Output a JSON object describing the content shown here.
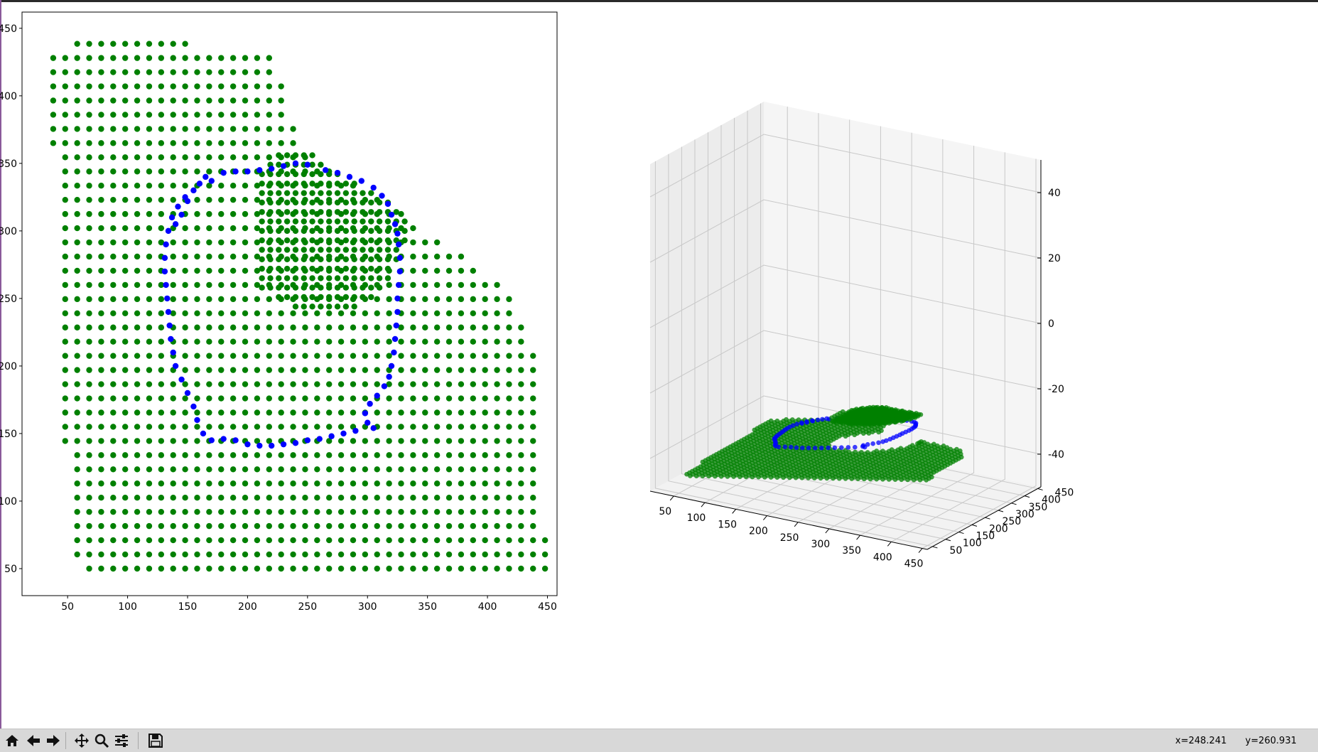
{
  "toolbar": {
    "buttons": [
      {
        "name": "home-button",
        "icon": "home-icon"
      },
      {
        "name": "back-button",
        "icon": "arrow-left-icon"
      },
      {
        "name": "forward-button",
        "icon": "arrow-right-icon"
      },
      {
        "name": "pan-button",
        "icon": "move-arrows-icon"
      },
      {
        "name": "zoom-button",
        "icon": "magnifier-icon"
      },
      {
        "name": "configure-subplots-button",
        "icon": "sliders-icon"
      },
      {
        "name": "save-button",
        "icon": "floppy-disk-icon"
      }
    ],
    "coords": {
      "x": "x=248.241",
      "y": "y=260.931"
    }
  },
  "chart_data": [
    {
      "type": "scatter",
      "title": "",
      "xlabel": "",
      "ylabel": "",
      "xlim": [
        12,
        458
      ],
      "ylim": [
        30,
        462
      ],
      "x_ticks": [
        "50",
        "100",
        "150",
        "200",
        "250",
        "300",
        "350",
        "400",
        "450"
      ],
      "y_ticks": [
        "50",
        "100",
        "150",
        "200",
        "250",
        "300",
        "350",
        "400",
        "450"
      ],
      "series": [
        {
          "color": "#008000",
          "description_points": "grid of points covering region bounded by (35,435),(75,443),(100,440),(215,437),(230,405),(240,375),(260,350),(320,320),(420,255),(440,205),(450,50),(60,50),(50,60),(45,260),(40,340),(35,380)"
        },
        {
          "color": "#0000ff",
          "points": [
            [
              180,
              343
            ],
            [
              190,
              344
            ],
            [
              200,
              344
            ],
            [
              210,
              345
            ],
            [
              220,
              346
            ],
            [
              230,
              348
            ],
            [
              240,
              350
            ],
            [
              250,
              349
            ],
            [
              265,
              345
            ],
            [
              275,
              343
            ],
            [
              285,
              340
            ],
            [
              295,
              337
            ],
            [
              305,
              332
            ],
            [
              312,
              326
            ],
            [
              317,
              320
            ],
            [
              320,
              312
            ],
            [
              323,
              305
            ],
            [
              325,
              298
            ],
            [
              326,
              290
            ],
            [
              327,
              280
            ],
            [
              327,
              270
            ],
            [
              326,
              260
            ],
            [
              325,
              250
            ],
            [
              325,
              240
            ],
            [
              324,
              230
            ],
            [
              323,
              220
            ],
            [
              322,
              210
            ],
            [
              320,
              200
            ],
            [
              318,
              192
            ],
            [
              314,
              185
            ],
            [
              308,
              178
            ],
            [
              302,
              172
            ],
            [
              298,
              165
            ],
            [
              300,
              158
            ],
            [
              305,
              154
            ],
            [
              290,
              152
            ],
            [
              280,
              150
            ],
            [
              270,
              148
            ],
            [
              260,
              146
            ],
            [
              250,
              145
            ],
            [
              240,
              143
            ],
            [
              230,
              142
            ],
            [
              220,
              141
            ],
            [
              210,
              141
            ],
            [
              200,
              142
            ],
            [
              190,
              145
            ],
            [
              180,
              146
            ],
            [
              170,
              145
            ],
            [
              163,
              150
            ],
            [
              158,
              160
            ],
            [
              155,
              170
            ],
            [
              150,
              180
            ],
            [
              145,
              190
            ],
            [
              140,
              200
            ],
            [
              138,
              210
            ],
            [
              136,
              220
            ],
            [
              135,
              230
            ],
            [
              134,
              240
            ],
            [
              133,
              250
            ],
            [
              132,
              260
            ],
            [
              131,
              270
            ],
            [
              131,
              280
            ],
            [
              132,
              290
            ],
            [
              134,
              300
            ],
            [
              137,
              310
            ],
            [
              142,
              318
            ],
            [
              148,
              325
            ],
            [
              155,
              330
            ],
            [
              160,
              335
            ],
            [
              170,
              337
            ],
            [
              165,
              340
            ],
            [
              150,
              322
            ],
            [
              145,
              312
            ],
            [
              140,
              305
            ]
          ]
        }
      ]
    },
    {
      "type": "scatter",
      "projection": "3d",
      "title": "",
      "x_ticks": [
        "50",
        "100",
        "150",
        "200",
        "250",
        "300",
        "350",
        "400",
        "450"
      ],
      "y_ticks": [
        "50",
        "100",
        "150",
        "200",
        "250",
        "300",
        "350",
        "400",
        "450"
      ],
      "z_ticks": [
        "-40",
        "-20",
        "0",
        "20",
        "40"
      ],
      "xlim": [
        12,
        458
      ],
      "ylim": [
        30,
        462
      ],
      "zlim": [
        -50,
        50
      ],
      "series_colors": [
        "#008000",
        "#0000ff"
      ]
    }
  ]
}
